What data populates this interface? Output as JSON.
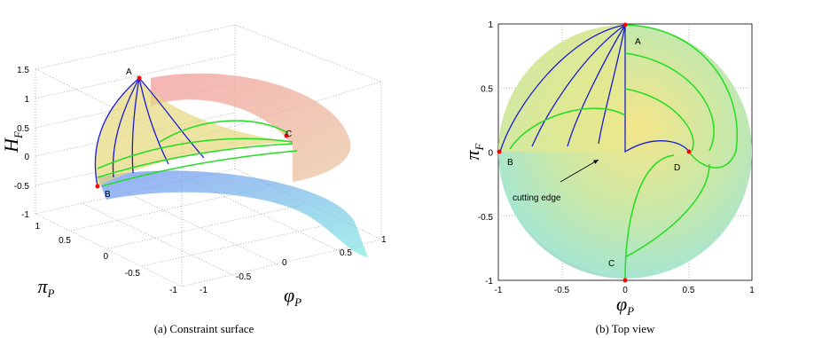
{
  "subfigures": [
    {
      "caption": "(a) Constraint surface",
      "z_label": "H",
      "z_label_sub": "F",
      "z_ticks": [
        "1.5",
        "1",
        "0.5",
        "0",
        "-0.5",
        "-1"
      ],
      "pi_ticks": [
        "1",
        "0.5",
        "0",
        "-0.5",
        "-1"
      ],
      "phi_ticks": [
        "-1",
        "-0.5",
        "0",
        "0.5",
        "1"
      ],
      "pi_label": "π",
      "pi_label_sub": "P",
      "phi_label": "φ",
      "phi_label_sub": "P",
      "points": [
        "A",
        "B",
        "C"
      ]
    },
    {
      "caption": "(b) Top view",
      "x_ticks": [
        "-1",
        "-0.5",
        "0",
        "0.5",
        "1"
      ],
      "y_ticks": [
        "1",
        "0.5",
        "0",
        "-0.5",
        "-1"
      ],
      "x_label": "φ",
      "x_label_sub": "P",
      "y_label": "π",
      "y_label_sub": "F",
      "points": [
        "A",
        "B",
        "C",
        "D"
      ],
      "annotation": "cutting edge"
    }
  ]
}
